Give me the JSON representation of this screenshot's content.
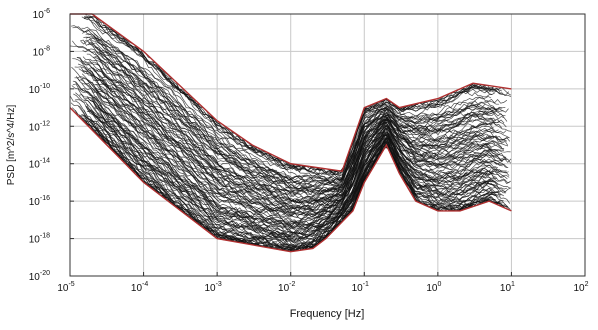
{
  "chart_data": {
    "type": "line",
    "xlabel": "Frequency [Hz]",
    "ylabel": "PSD [m^2/s^4/Hz]",
    "x_scale": "log",
    "y_scale": "log",
    "xlim": [
      1e-05,
      100
    ],
    "ylim": [
      1e-20,
      1e-06
    ],
    "grid": true,
    "x_ticks": [
      {
        "value": 1e-05,
        "base": "10",
        "exp": "-5"
      },
      {
        "value": 0.0001,
        "base": "10",
        "exp": "-4"
      },
      {
        "value": 0.001,
        "base": "10",
        "exp": "-3"
      },
      {
        "value": 0.01,
        "base": "10",
        "exp": "-2"
      },
      {
        "value": 0.1,
        "base": "10",
        "exp": "-1"
      },
      {
        "value": 1,
        "base": "10",
        "exp": "0"
      },
      {
        "value": 10,
        "base": "10",
        "exp": "1"
      },
      {
        "value": 100,
        "base": "10",
        "exp": "2"
      }
    ],
    "y_ticks": [
      {
        "value": 1e-06,
        "base": "10",
        "exp": "-6"
      },
      {
        "value": 1e-08,
        "base": "10",
        "exp": "-8"
      },
      {
        "value": 1e-10,
        "base": "10",
        "exp": "-10"
      },
      {
        "value": 1e-12,
        "base": "10",
        "exp": "-12"
      },
      {
        "value": 1e-14,
        "base": "10",
        "exp": "-14"
      },
      {
        "value": 1e-16,
        "base": "10",
        "exp": "-16"
      },
      {
        "value": 1e-18,
        "base": "10",
        "exp": "-18"
      },
      {
        "value": 1e-20,
        "base": "10",
        "exp": "-20"
      }
    ],
    "series_color": "#111111",
    "envelope_color": "#b03030",
    "upper_envelope": {
      "x": [
        1e-05,
        2e-05,
        0.0001,
        0.001,
        0.003,
        0.01,
        0.05,
        0.1,
        0.2,
        0.3,
        1,
        3,
        10
      ],
      "y": [
        1e-06,
        1e-06,
        1e-08,
        2e-12,
        1e-13,
        1e-14,
        4e-15,
        1e-11,
        3e-11,
        1e-11,
        3e-11,
        2e-10,
        1e-10
      ]
    },
    "lower_envelope": {
      "x": [
        1e-05,
        0.0001,
        0.001,
        0.01,
        0.02,
        0.03,
        0.07,
        0.1,
        0.2,
        0.3,
        0.5,
        1,
        2,
        5,
        10
      ],
      "y": [
        1e-11,
        1e-15,
        1e-18,
        2e-19,
        3e-19,
        1e-18,
        3e-17,
        1e-15,
        1e-13,
        3e-15,
        1e-16,
        3e-17,
        3e-17,
        1e-16,
        3e-17
      ]
    },
    "trace_count": 120
  }
}
